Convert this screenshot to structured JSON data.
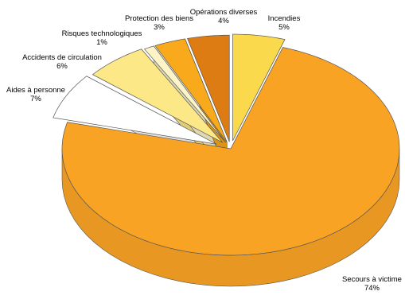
{
  "chart_data": {
    "type": "pie",
    "variant": "3d-exploded",
    "slices": [
      {
        "name": "Incendies",
        "value": 5,
        "label": "5%",
        "color": "#fbd94c"
      },
      {
        "name": "Secours à victime",
        "value": 74,
        "label": "74%",
        "color": "#f9a325"
      },
      {
        "name": "Aides à personne",
        "value": 7,
        "label": "7%",
        "color": "#ffffff"
      },
      {
        "name": "Accidents de circulation",
        "value": 6,
        "label": "6%",
        "color": "#fce886"
      },
      {
        "name": "Risques technologiques",
        "value": 1,
        "label": "1%",
        "color": "#fdf4c8"
      },
      {
        "name": "Protection des biens",
        "value": 3,
        "label": "3%",
        "color": "#f8a91c"
      },
      {
        "name": "Opérations diverses",
        "value": 4,
        "label": "4%",
        "color": "#dc7c12"
      }
    ],
    "legend": "none"
  }
}
